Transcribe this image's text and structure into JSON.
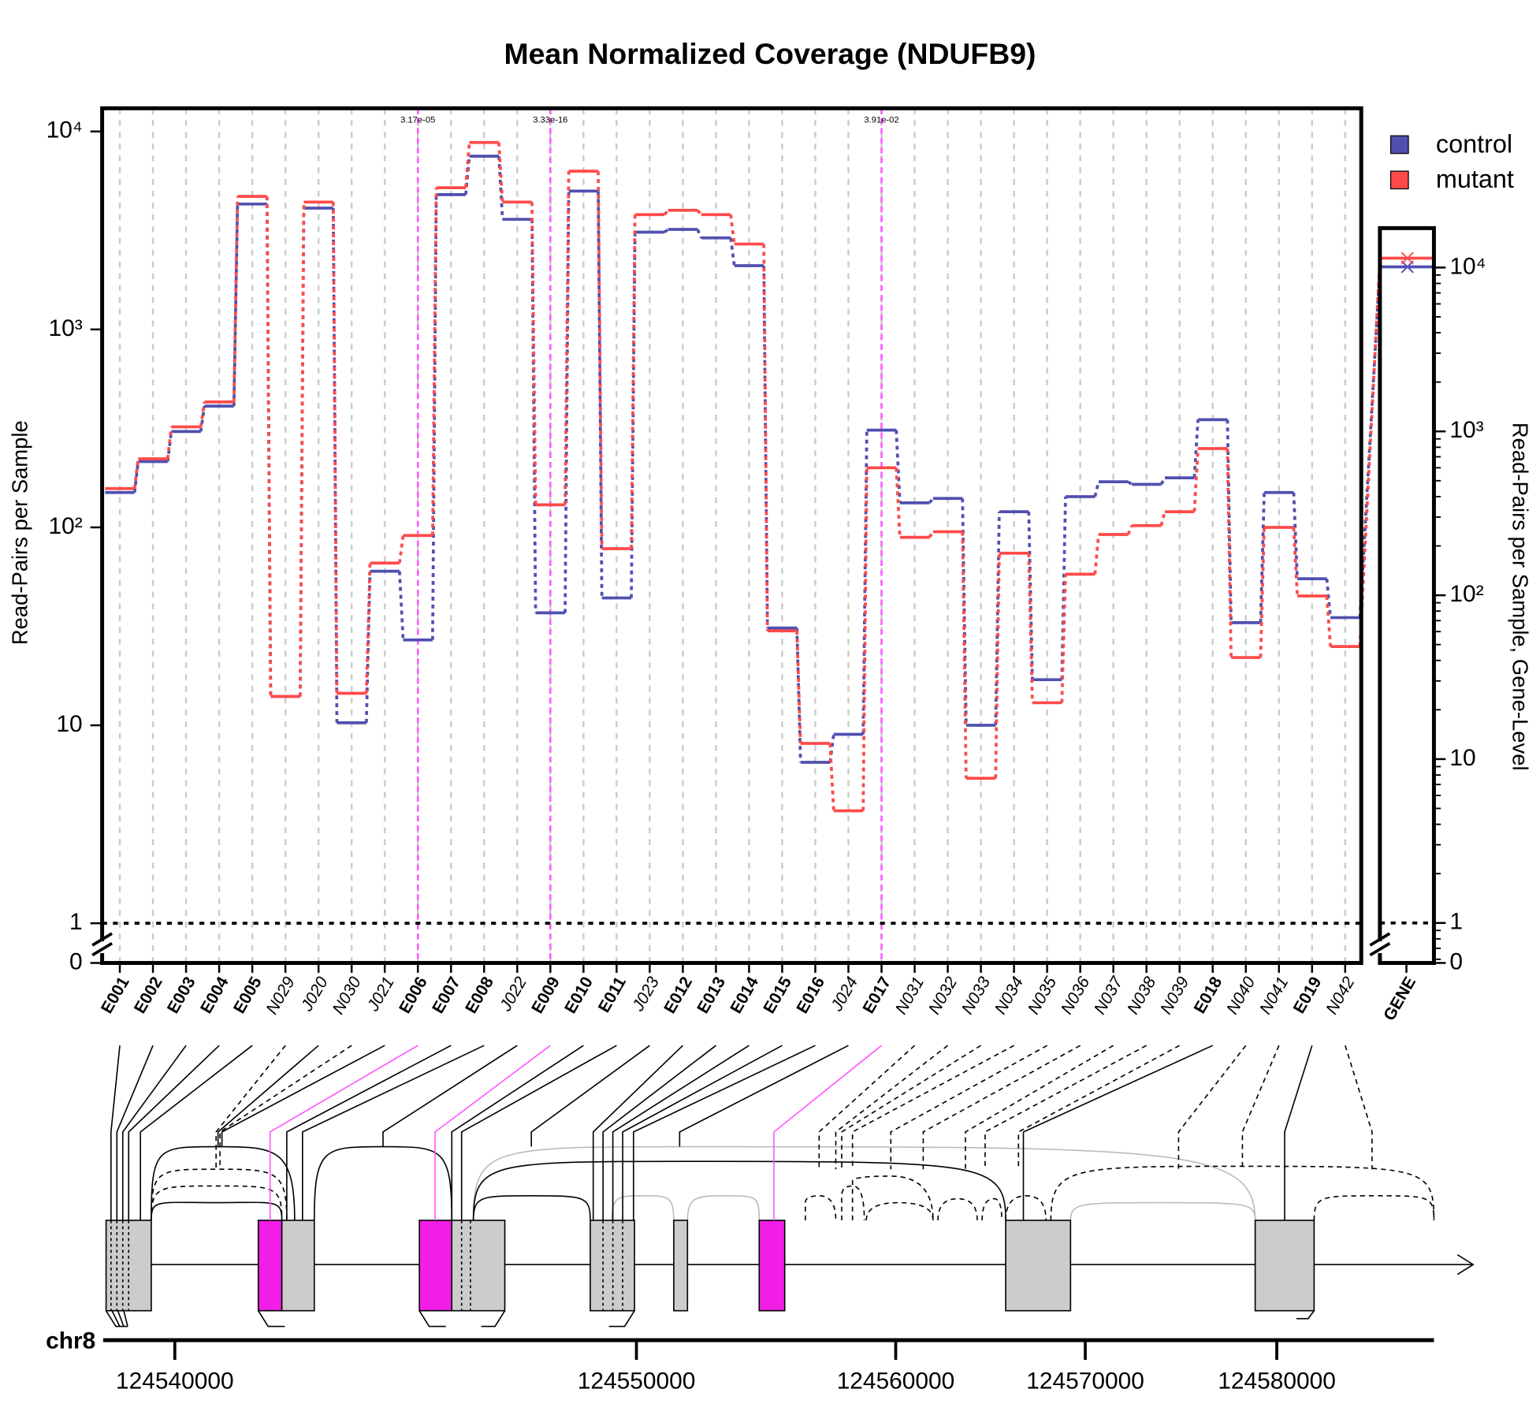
{
  "chart_data": {
    "type": "step",
    "title": "Mean Normalized Coverage (NDUFB9)",
    "y_label": "Read-Pairs per Sample",
    "y2_label": "Read-Pairs per Sample, Gene-Level",
    "log_scale": true,
    "grid": true,
    "legend_position": "top-right",
    "reference_line": 1,
    "categories": [
      "E001",
      "E002",
      "E003",
      "E004",
      "E005",
      "N029",
      "J020",
      "N030",
      "J021",
      "E006",
      "E007",
      "E008",
      "J022",
      "E009",
      "E010",
      "E011",
      "J023",
      "E012",
      "E013",
      "E014",
      "E015",
      "E016",
      "J024",
      "E017",
      "N031",
      "N032",
      "N033",
      "N034",
      "N035",
      "N036",
      "N037",
      "N038",
      "N039",
      "E018",
      "N040",
      "N041",
      "E019",
      "N042"
    ],
    "series": [
      {
        "name": "control",
        "color": "#5050B0",
        "gene_value": 10100,
        "values": [
          150,
          215,
          305,
          410,
          4300,
          14,
          4100,
          10.3,
          60,
          27,
          4800,
          7500,
          3600,
          37,
          5000,
          44,
          3100,
          3200,
          2900,
          2100,
          31,
          6.5,
          9,
          310,
          133,
          140,
          10,
          120,
          17,
          143,
          170,
          165,
          178,
          350,
          33,
          150,
          55,
          35
        ]
      },
      {
        "name": "mutant",
        "color": "#FF4A4A",
        "gene_value": 11400,
        "values": [
          157,
          222,
          322,
          430,
          4700,
          14,
          4400,
          14.5,
          66,
          91,
          5200,
          8800,
          4400,
          130,
          6300,
          78,
          3800,
          4000,
          3800,
          2700,
          30,
          8.1,
          3.7,
          200,
          89,
          95,
          5.4,
          74,
          13,
          58,
          92,
          102,
          120,
          250,
          22,
          100,
          45,
          25
        ]
      }
    ],
    "gene_category": "GENE",
    "ylim": [
      0.63,
      13100
    ],
    "yticks": [
      0,
      1,
      10,
      {
        "value": 100,
        "label": "10²"
      },
      {
        "value": 1000,
        "label": "10³"
      },
      {
        "value": 10000,
        "label": "10⁴"
      }
    ],
    "y2lim": [
      0.57,
      17400
    ],
    "y2ticks": [
      0,
      1,
      10,
      {
        "value": 100,
        "label": "10²"
      },
      {
        "value": 1000,
        "label": "10³"
      },
      {
        "value": 10000,
        "label": "10⁴"
      }
    ],
    "highlight_color": "#FF55FF",
    "annotations": [
      {
        "category": "E006",
        "text": "3.17e-05"
      },
      {
        "category": "E009",
        "text": "3.33e-16"
      },
      {
        "category": "E017",
        "text": "3.91e-02"
      }
    ],
    "genome_axis": {
      "label": "chr8",
      "xticks": [
        124540000,
        124550000,
        124560000,
        124570000,
        124580000
      ]
    }
  }
}
